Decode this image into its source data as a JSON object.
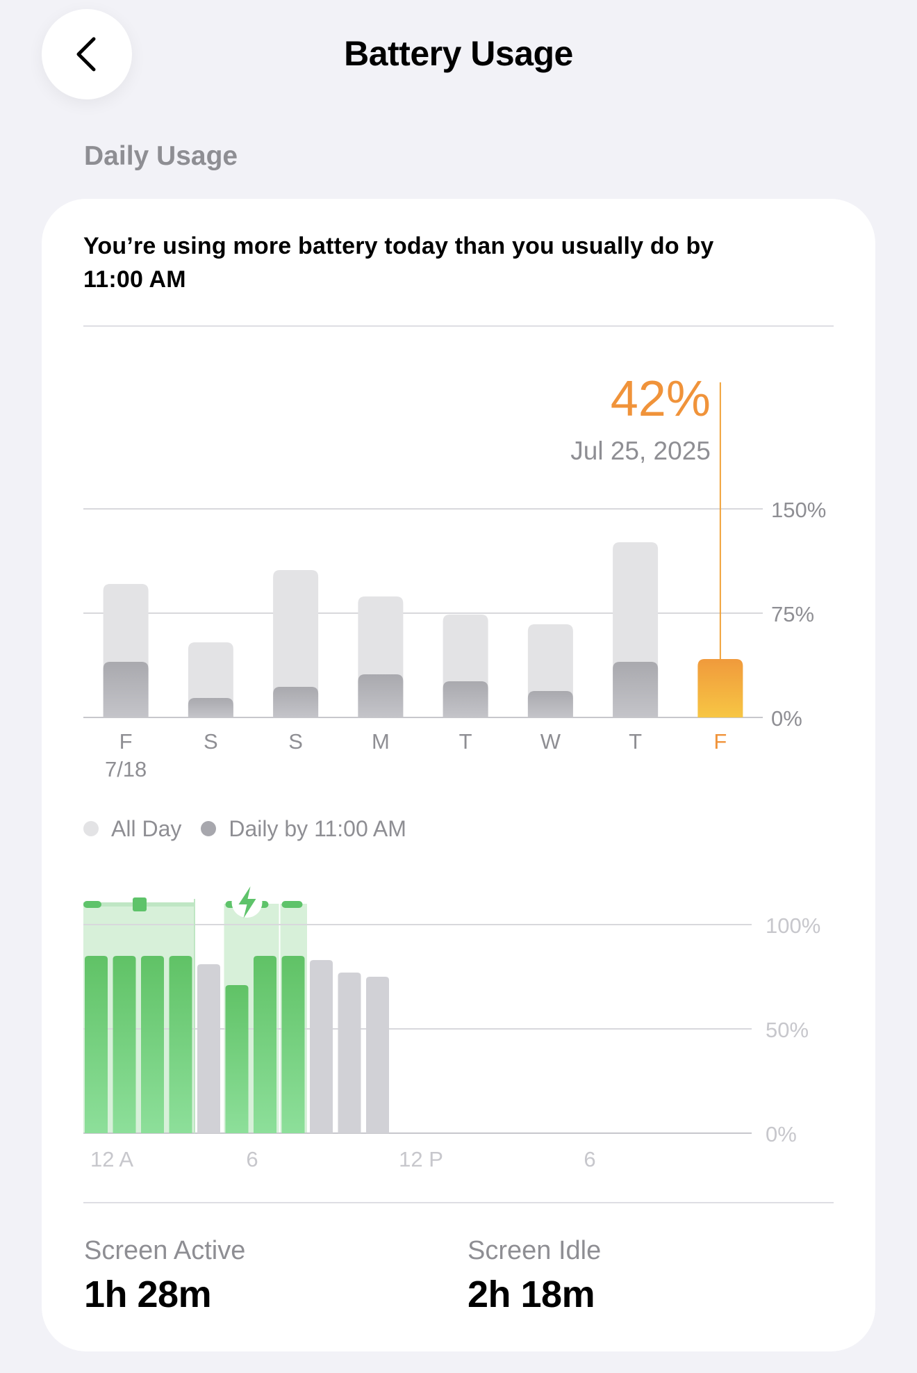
{
  "header": {
    "back_icon": "chevron-left-icon",
    "title": "Battery Usage"
  },
  "section_title": "Daily Usage",
  "card": {
    "headline": "You’re using more battery today than you usually do by 11:00 AM"
  },
  "colors": {
    "accent_orange": "#f0a23a",
    "all_day_gray": "#e3e3e5",
    "daily_gray": "#b3b3b8",
    "charging_green": "#5ec36a",
    "idle_gray": "#d1d1d6"
  },
  "chart_data": [
    {
      "type": "bar",
      "selected": {
        "value_label": "42%",
        "date_label": "Jul 25, 2025"
      },
      "categories": [
        "F",
        "S",
        "S",
        "M",
        "T",
        "W",
        "T",
        "F"
      ],
      "sublabels": [
        "7/18",
        "",
        "",
        "",
        "",
        "",
        "",
        ""
      ],
      "series": [
        {
          "name": "All Day",
          "values": [
            96,
            54,
            106,
            87,
            74,
            67,
            126,
            42
          ]
        },
        {
          "name": "Daily by 11:00 AM",
          "values": [
            40,
            14,
            22,
            31,
            26,
            19,
            40,
            42
          ]
        }
      ],
      "yticks": [
        "150%",
        "75%",
        "0%"
      ],
      "ylim": [
        0,
        150
      ],
      "highlight_index": 7,
      "legend": [
        "All Day",
        "Daily by 11:00 AM"
      ],
      "legend_position": "bottom-left"
    },
    {
      "type": "bar",
      "x_ticks": [
        "12 A",
        "6",
        "12 P",
        "6"
      ],
      "yticks": [
        "100%",
        "50%",
        "0%"
      ],
      "ylim": [
        0,
        100
      ],
      "hours": [
        0,
        1,
        2,
        3,
        4,
        5,
        6,
        7,
        8,
        9,
        10
      ],
      "values": [
        85,
        85,
        85,
        85,
        81,
        71,
        85,
        85,
        83,
        77,
        75
      ],
      "charging": [
        true,
        true,
        true,
        true,
        false,
        true,
        true,
        true,
        false,
        false,
        false
      ]
    }
  ],
  "stats": [
    {
      "label": "Screen Active",
      "value": "1h 28m"
    },
    {
      "label": "Screen Idle",
      "value": "2h 18m"
    }
  ]
}
